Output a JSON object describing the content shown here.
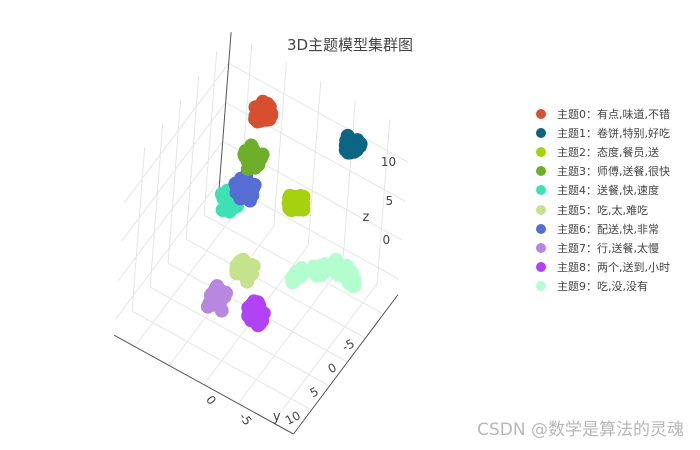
{
  "chart_data": {
    "type": "scatter",
    "title": "3D主题模型集群图",
    "axes": {
      "x": {
        "label": "",
        "ticks": [
          "0",
          "-5"
        ]
      },
      "y": {
        "label": "y",
        "ticks": [
          "-5",
          "0",
          "5",
          "10"
        ]
      },
      "z": {
        "label": "z",
        "ticks": [
          "0",
          "5",
          "10"
        ]
      }
    },
    "grid": true,
    "legend_position": "right",
    "series": [
      {
        "name": "主题0：有点,味道,不错",
        "color": "#d64f2e",
        "x": 5.5,
        "y": -9,
        "z": 10.5
      },
      {
        "name": "主题1：卷饼,特别,好吃",
        "color": "#0b6583",
        "x": -6,
        "y": -12,
        "z": 10
      },
      {
        "name": "主题2：态度,餐员,送",
        "color": "#a5d10f",
        "x": -1,
        "y": -7,
        "z": 3.5
      },
      {
        "name": "主题3：师傅,送餐,很快",
        "color": "#6eaf2a",
        "x": 6,
        "y": -8,
        "z": 5
      },
      {
        "name": "主题4：送餐,快,速度",
        "color": "#3de1b4",
        "x": 6,
        "y": -2,
        "z": 3
      },
      {
        "name": "主题5：吃,太,难吃",
        "color": "#c5e38c",
        "x": 1,
        "y": 3,
        "z": 0
      },
      {
        "name": "主题6：配送,快,非常",
        "color": "#566ed3",
        "x": 5,
        "y": -4,
        "z": 4
      },
      {
        "name": "主题7：行,送餐,太慢",
        "color": "#b887e0",
        "x": 3,
        "y": 6,
        "z": -3
      },
      {
        "name": "主题8：两个,送到,小时",
        "color": "#b142f5",
        "x": -2,
        "y": 5,
        "z": -3
      },
      {
        "name": "主题9：吃,没,没有",
        "color": "#b4fdcf",
        "x": -9,
        "y": -2,
        "z": 2
      }
    ]
  },
  "watermark": "CSDN @数学是算法的灵魂"
}
